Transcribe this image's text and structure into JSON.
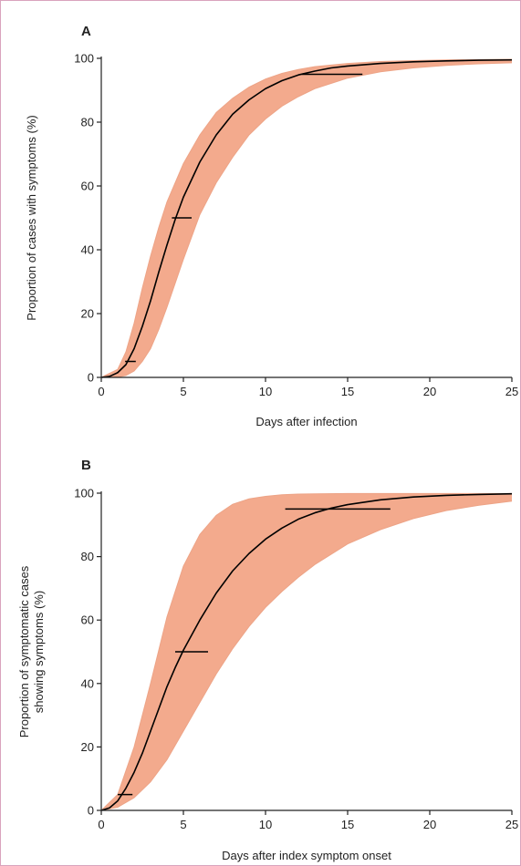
{
  "colors": {
    "band": "#f2a383",
    "band_edge": "#eda487",
    "median": "#000000",
    "axis": "#222222",
    "frame": "#d9a3bd"
  },
  "chart_data": [
    {
      "type": "line",
      "panel_label": "A",
      "xlabel": "Days after infection",
      "ylabel": "Proportion of cases with symptoms (%)",
      "ylabel_lines": [
        "Proportion of cases with symptoms (%)"
      ],
      "xlim": [
        0,
        25
      ],
      "ylim": [
        0,
        100
      ],
      "xticks": [
        0,
        5,
        10,
        15,
        20,
        25
      ],
      "yticks": [
        0,
        20,
        40,
        60,
        80,
        100
      ],
      "median_curve": {
        "x": [
          0,
          0.5,
          1,
          1.5,
          2,
          2.5,
          3,
          3.5,
          4,
          4.5,
          5,
          6,
          7,
          8,
          9,
          10,
          11,
          12,
          13,
          14,
          15,
          17,
          19,
          21,
          23,
          25
        ],
        "y": [
          0,
          0.3,
          1.5,
          4,
          9,
          16,
          24,
          33,
          41.5,
          49.5,
          56.5,
          67.5,
          76,
          82.5,
          87,
          90.5,
          93,
          94.8,
          96,
          97,
          97.6,
          98.4,
          98.9,
          99.2,
          99.4,
          99.5
        ]
      },
      "band_outer": {
        "x": [
          0,
          1,
          1.5,
          2,
          2.5,
          3,
          3.5,
          4,
          5,
          6,
          7,
          8,
          9,
          10,
          11,
          12,
          13,
          15,
          17,
          19,
          21,
          23,
          25
        ],
        "upper": [
          0,
          2.5,
          8,
          17,
          28,
          38,
          47,
          55,
          67,
          76,
          83,
          87.5,
          91,
          93.5,
          95.3,
          96.5,
          97.4,
          98.4,
          99,
          99.3,
          99.5,
          99.6,
          99.7
        ],
        "lower": [
          0,
          0.1,
          0.6,
          2,
          5,
          9,
          15,
          22,
          37,
          51,
          61,
          69,
          76,
          81,
          85,
          88,
          90.5,
          93.8,
          95.8,
          97,
          97.8,
          98.3,
          98.6
        ]
      },
      "percentile_markers": [
        {
          "y": 5,
          "x_start": 1.45,
          "x_end": 2.1
        },
        {
          "y": 50,
          "x_start": 4.3,
          "x_end": 5.5
        },
        {
          "y": 95,
          "x_start": 12.2,
          "x_end": 15.9
        }
      ]
    },
    {
      "type": "line",
      "panel_label": "B",
      "xlabel": "Days after index symptom onset",
      "ylabel": "Proportion of symptomatic cases showing symptoms (%)",
      "ylabel_lines": [
        "Proportion of symptomatic cases",
        "showing symptoms (%)"
      ],
      "xlim": [
        0,
        25
      ],
      "ylim": [
        0,
        100
      ],
      "xticks": [
        0,
        5,
        10,
        15,
        20,
        25
      ],
      "yticks": [
        0,
        20,
        40,
        60,
        80,
        100
      ],
      "median_curve": {
        "x": [
          0,
          0.5,
          1,
          1.5,
          2,
          2.5,
          3,
          3.5,
          4,
          4.5,
          5,
          6,
          7,
          8,
          9,
          10,
          11,
          12,
          13,
          14,
          15,
          17,
          19,
          21,
          23,
          25
        ],
        "y": [
          0,
          0.8,
          3,
          7,
          12,
          18,
          25,
          32,
          39,
          45,
          50.5,
          60,
          68.5,
          75.5,
          81,
          85.5,
          89,
          91.8,
          93.8,
          95.3,
          96.4,
          97.9,
          98.8,
          99.3,
          99.6,
          99.8
        ]
      },
      "band_outer": {
        "x": [
          0,
          1,
          2,
          3,
          4,
          5,
          6,
          7,
          8,
          9,
          10,
          11,
          12,
          13,
          15,
          17,
          19,
          21,
          23,
          25
        ],
        "upper": [
          0,
          5,
          20,
          40,
          61,
          77,
          87,
          93,
          96.5,
          98.2,
          99,
          99.5,
          99.7,
          99.8,
          99.9,
          99.9,
          99.9,
          99.9,
          99.9,
          99.9
        ],
        "lower": [
          0,
          1,
          4,
          9,
          16,
          25,
          34,
          43,
          51,
          58,
          64,
          69,
          73.5,
          77.5,
          84,
          88.5,
          92,
          94.5,
          96.2,
          97.5
        ]
      },
      "percentile_markers": [
        {
          "y": 5,
          "x_start": 1.0,
          "x_end": 1.9
        },
        {
          "y": 50,
          "x_start": 4.5,
          "x_end": 6.5
        },
        {
          "y": 95,
          "x_start": 11.2,
          "x_end": 17.6
        }
      ]
    }
  ]
}
